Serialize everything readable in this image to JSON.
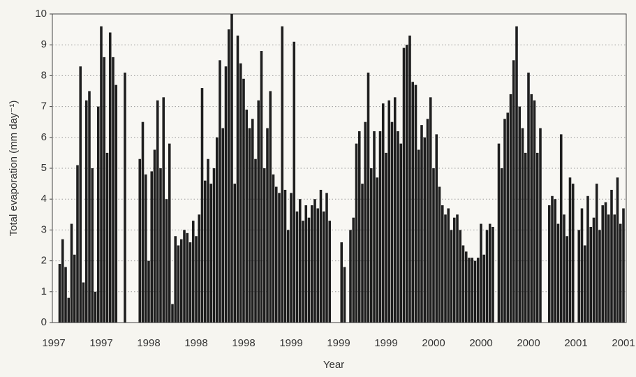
{
  "chart_data": {
    "type": "bar",
    "x_label": "Year",
    "y_label": "Total evaporation (mm day⁻¹)",
    "color": "#1e1e1e",
    "grid": true,
    "ylim": [
      0,
      10
    ],
    "yticks": [
      0,
      1,
      2,
      3,
      4,
      5,
      6,
      7,
      8,
      9,
      10
    ],
    "categories": [
      "1997",
      null,
      null,
      null,
      null,
      null,
      null,
      null,
      null,
      null,
      null,
      null,
      null,
      null,
      null,
      null,
      "1997",
      null,
      null,
      null,
      null,
      null,
      null,
      null,
      null,
      null,
      null,
      null,
      null,
      null,
      null,
      null,
      "1998",
      null,
      null,
      null,
      null,
      null,
      null,
      null,
      null,
      null,
      null,
      null,
      null,
      null,
      null,
      null,
      "1998",
      null,
      null,
      null,
      null,
      null,
      null,
      null,
      null,
      null,
      null,
      null,
      null,
      null,
      null,
      null,
      "1998",
      null,
      null,
      null,
      null,
      null,
      null,
      null,
      null,
      null,
      null,
      null,
      null,
      null,
      null,
      null,
      "1999",
      null,
      null,
      null,
      null,
      null,
      null,
      null,
      null,
      null,
      null,
      null,
      null,
      null,
      null,
      null,
      "1999",
      null,
      null,
      null,
      null,
      null,
      null,
      null,
      null,
      null,
      null,
      null,
      null,
      null,
      null,
      null,
      "1999",
      null,
      null,
      null,
      null,
      null,
      null,
      null,
      null,
      null,
      null,
      null,
      null,
      null,
      null,
      null,
      "2000",
      null,
      null,
      null,
      null,
      null,
      null,
      null,
      null,
      null,
      null,
      null,
      null,
      null,
      null,
      null,
      "2000",
      null,
      null,
      null,
      null,
      null,
      null,
      null,
      null,
      null,
      null,
      null,
      null,
      null,
      null,
      null,
      "2000",
      null,
      null,
      null,
      null,
      null,
      null,
      null,
      null,
      null,
      null,
      null,
      null,
      null,
      null,
      null,
      "2001",
      null,
      null,
      null,
      null,
      null,
      null,
      null,
      null,
      null,
      null,
      null,
      null,
      null,
      null,
      null,
      "2001"
    ],
    "values": [
      0,
      0,
      1.9,
      2.7,
      1.8,
      0.8,
      3.2,
      2.2,
      5.1,
      8.3,
      1.3,
      7.2,
      7.5,
      5.0,
      1.0,
      7.0,
      9.6,
      8.6,
      5.5,
      9.4,
      8.6,
      7.7,
      0,
      0,
      8.1,
      0,
      0,
      0,
      0,
      5.3,
      6.5,
      4.8,
      2.0,
      4.9,
      5.6,
      7.2,
      5.0,
      7.3,
      4.0,
      5.8,
      0.6,
      2.8,
      2.5,
      2.7,
      3.0,
      2.9,
      2.6,
      3.3,
      2.8,
      3.5,
      7.6,
      4.6,
      5.3,
      4.5,
      5.0,
      6.0,
      8.5,
      6.3,
      8.3,
      9.5,
      10,
      4.5,
      9.3,
      8.4,
      7.9,
      6.9,
      6.3,
      6.6,
      5.3,
      7.2,
      8.8,
      5.0,
      6.3,
      7.5,
      4.8,
      4.4,
      4.2,
      9.6,
      4.3,
      3.0,
      4.2,
      9.1,
      3.6,
      4.0,
      3.3,
      3.8,
      3.4,
      3.8,
      4.0,
      3.7,
      4.3,
      3.6,
      4.2,
      3.3,
      0,
      0,
      0,
      2.6,
      1.8,
      0,
      3.0,
      3.4,
      5.8,
      6.2,
      4.5,
      6.5,
      8.1,
      5.0,
      6.2,
      4.7,
      6.2,
      7.1,
      5.5,
      7.2,
      6.5,
      7.3,
      6.2,
      5.8,
      8.9,
      9.0,
      9.3,
      7.8,
      7.7,
      5.6,
      6.4,
      6.0,
      6.6,
      7.3,
      5.0,
      6.1,
      4.4,
      3.8,
      3.5,
      3.7,
      3.0,
      3.4,
      3.5,
      3.0,
      2.5,
      2.3,
      2.1,
      2.1,
      2.0,
      2.1,
      3.2,
      2.2,
      3.0,
      3.2,
      3.1,
      0,
      5.8,
      5.0,
      6.6,
      6.8,
      7.4,
      8.5,
      9.6,
      7.0,
      6.3,
      5.5,
      8.1,
      7.4,
      7.2,
      5.5,
      6.3,
      0,
      0,
      3.8,
      4.1,
      4.0,
      3.2,
      6.1,
      3.5,
      2.8,
      4.7,
      4.5,
      0,
      3.0,
      3.7,
      2.5,
      4.1,
      3.1,
      3.4,
      4.5,
      3.0,
      3.8,
      3.9,
      3.5,
      4.3,
      3.5,
      4.7,
      3.2,
      3.7
    ]
  }
}
